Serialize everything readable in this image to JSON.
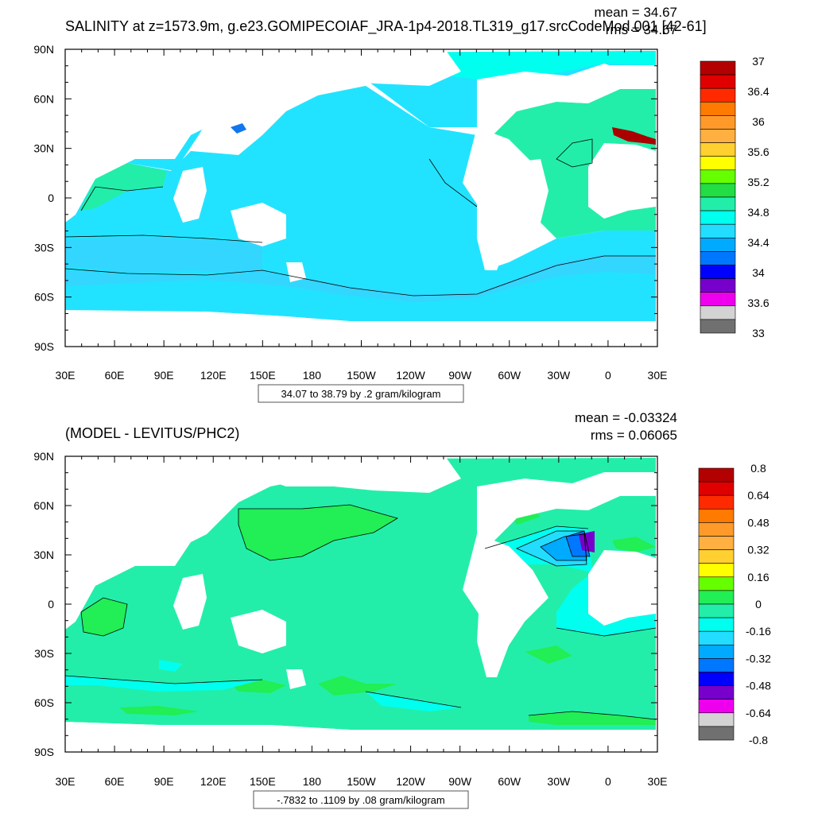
{
  "panels": [
    {
      "title": "SALINITY at z=1573.9m, g.e23.GOMIPECOIAF_JRA-1p4-2018.TL319_g17.srcCodeMod.001 [42-61]",
      "stats": {
        "mean": "mean = 34.67",
        "rms": "rms = 34.67"
      },
      "lat_labels": [
        "90N",
        "60N",
        "30N",
        "0",
        "30S",
        "60S",
        "90S"
      ],
      "lon_labels": [
        "30E",
        "60E",
        "90E",
        "120E",
        "150E",
        "180",
        "150W",
        "120W",
        "90W",
        "60W",
        "30W",
        "0",
        "30E"
      ],
      "info": "34.07 to 38.79 by .2 gram/kilogram",
      "colorbar": {
        "colors": [
          "#b30000",
          "#e00000",
          "#ff2a00",
          "#ff7a00",
          "#ff9a2a",
          "#ffb040",
          "#ffd030",
          "#ffff00",
          "#66ff00",
          "#22dd44",
          "#22eeaa",
          "#00ffee",
          "#22ddff",
          "#00aaff",
          "#0077ff",
          "#0000ff",
          "#7700cc",
          "#ee00ee",
          "#d3d3d3",
          "#707070"
        ],
        "labels": [
          "37",
          "36.4",
          "36",
          "35.6",
          "35.2",
          "34.8",
          "34.4",
          "34",
          "33.6",
          "33"
        ]
      },
      "colors": {
        "ocean": "#22e3ff",
        "band": "#00ffee",
        "south": "#33d6ff",
        "warm": "#22eeaa",
        "hot": "#aa0000",
        "cold": "#1177ee"
      }
    },
    {
      "title": "(MODEL - LEVITUS/PHC2)",
      "stats": {
        "mean": "mean = -0.03324",
        "rms": "rms = 0.06065"
      },
      "lat_labels": [
        "90N",
        "60N",
        "30N",
        "0",
        "30S",
        "60S",
        "90S"
      ],
      "lon_labels": [
        "30E",
        "60E",
        "90E",
        "120E",
        "150E",
        "180",
        "150W",
        "120W",
        "90W",
        "60W",
        "30W",
        "0",
        "30E"
      ],
      "info": "-.7832 to .1109 by .08 gram/kilogram",
      "colorbar": {
        "colors": [
          "#b30000",
          "#e00000",
          "#ff2a00",
          "#ff7a00",
          "#ff9a2a",
          "#ffb040",
          "#ffd030",
          "#ffff00",
          "#66ff00",
          "#22ee55",
          "#22eeaa",
          "#00ffee",
          "#22ddff",
          "#00aaff",
          "#0077ff",
          "#0000ff",
          "#7700cc",
          "#ee00ee",
          "#d3d3d3",
          "#707070"
        ],
        "labels": [
          "0.8",
          "0.64",
          "0.48",
          "0.32",
          "0.16",
          "0",
          "-0.16",
          "-0.32",
          "-0.48",
          "-0.64",
          "-0.8"
        ]
      },
      "colors": {
        "ocean": "#22eeaa",
        "pos": "#22ee55",
        "neg1": "#00ffee",
        "neg2": "#22ddff",
        "neg3": "#00aaff",
        "neg4": "#0077ff",
        "neg5": "#7700cc"
      }
    }
  ]
}
